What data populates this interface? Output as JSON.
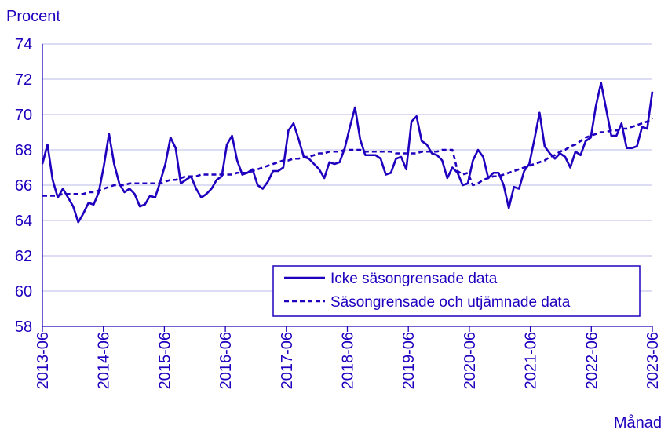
{
  "chart_data": {
    "type": "line",
    "ylabel": "Procent",
    "xlabel": "Månad",
    "ylim": [
      58,
      74
    ],
    "yticks": [
      "58",
      "60",
      "62",
      "64",
      "66",
      "68",
      "70",
      "72",
      "74"
    ],
    "xticks": [
      "2013-06",
      "2014-06",
      "2015-06",
      "2016-06",
      "2017-06",
      "2018-06",
      "2019-06",
      "2020-06",
      "2021-06",
      "2022-06",
      "2023-06"
    ],
    "grid": "horizontal",
    "legend_position": "bottom-right",
    "series": [
      {
        "name": "Icke säsongrensade data",
        "style": "solid",
        "values": [
          67.2,
          68.3,
          66.3,
          65.3,
          65.8,
          65.3,
          64.8,
          63.9,
          64.4,
          65.0,
          64.9,
          65.6,
          67.1,
          68.9,
          67.2,
          66.1,
          65.6,
          65.8,
          65.5,
          64.8,
          64.9,
          65.4,
          65.3,
          66.2,
          67.2,
          68.7,
          68.1,
          66.1,
          66.3,
          66.5,
          65.8,
          65.3,
          65.5,
          65.8,
          66.3,
          66.5,
          68.3,
          68.8,
          67.4,
          66.6,
          66.7,
          66.9,
          66.0,
          65.8,
          66.2,
          66.8,
          66.8,
          67.0,
          69.1,
          69.5,
          68.6,
          67.6,
          67.5,
          67.2,
          66.9,
          66.4,
          67.3,
          67.2,
          67.3,
          68.1,
          69.3,
          70.4,
          68.6,
          67.7,
          67.7,
          67.7,
          67.5,
          66.6,
          66.7,
          67.5,
          67.6,
          66.9,
          69.6,
          69.9,
          68.5,
          68.3,
          67.8,
          67.7,
          67.4,
          66.4,
          67.0,
          66.7,
          66.0,
          66.1,
          67.4,
          68.0,
          67.6,
          66.4,
          66.7,
          66.7,
          66.0,
          64.7,
          65.9,
          65.8,
          66.8,
          67.2,
          68.6,
          70.1,
          68.2,
          67.8,
          67.5,
          67.8,
          67.6,
          67.0,
          67.9,
          67.7,
          68.5,
          68.7,
          70.5,
          71.8,
          70.3,
          68.8,
          68.8,
          69.5,
          68.1,
          68.1,
          68.2,
          69.3,
          69.2,
          71.3
        ]
      },
      {
        "name": "Säsongrensade och utjämnade data",
        "style": "dashed",
        "values": [
          65.4,
          65.4,
          65.4,
          65.4,
          65.5,
          65.5,
          65.5,
          65.5,
          65.5,
          65.6,
          65.6,
          65.7,
          65.8,
          65.9,
          66.0,
          66.0,
          66.0,
          66.1,
          66.1,
          66.1,
          66.1,
          66.1,
          66.1,
          66.1,
          66.2,
          66.3,
          66.3,
          66.4,
          66.5,
          66.5,
          66.5,
          66.6,
          66.6,
          66.6,
          66.6,
          66.6,
          66.6,
          66.6,
          66.7,
          66.7,
          66.7,
          66.8,
          66.9,
          67.0,
          67.1,
          67.2,
          67.3,
          67.4,
          67.4,
          67.5,
          67.5,
          67.6,
          67.6,
          67.7,
          67.8,
          67.8,
          67.9,
          67.9,
          67.9,
          68.0,
          68.0,
          68.0,
          68.0,
          67.9,
          67.9,
          67.9,
          67.9,
          67.9,
          67.9,
          67.8,
          67.8,
          67.8,
          67.8,
          67.8,
          67.9,
          67.9,
          67.9,
          67.9,
          68.0,
          68.0,
          68.0,
          66.8,
          66.6,
          66.7,
          66.0,
          66.1,
          66.3,
          66.4,
          66.5,
          66.5,
          66.6,
          66.7,
          66.8,
          66.9,
          67.0,
          67.1,
          67.2,
          67.3,
          67.4,
          67.6,
          67.7,
          67.9,
          68.0,
          68.2,
          68.3,
          68.5,
          68.7,
          68.8,
          68.9,
          69.0,
          69.0,
          69.1,
          69.1,
          69.2,
          69.2,
          69.3,
          69.4,
          69.5,
          69.6,
          69.8
        ]
      }
    ]
  },
  "colors": {
    "series": "#1e00be",
    "text": "#1e00be",
    "grid": "#c8c8ee",
    "axis": "#1e00be",
    "background": "#ffffff"
  }
}
